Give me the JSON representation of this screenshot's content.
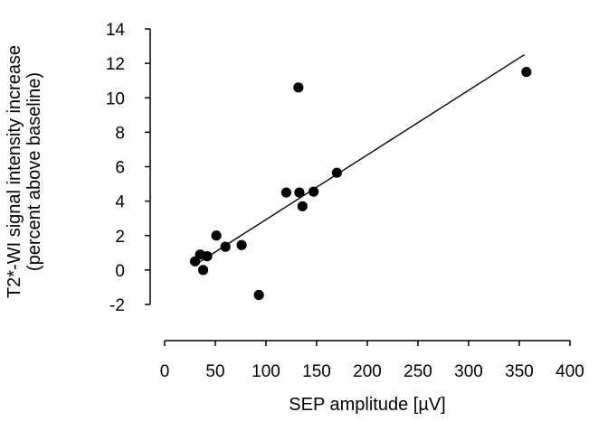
{
  "chart_data": {
    "type": "scatter",
    "title": "",
    "xlabel": "SEP amplitude [µV]",
    "ylabel_lines": [
      "T2*-WI signal intensity increase",
      "(percent above baseline)"
    ],
    "xlim": [
      0,
      400
    ],
    "ylim": [
      -2,
      14
    ],
    "x_ticks": [
      0,
      50,
      100,
      150,
      200,
      250,
      300,
      350,
      400
    ],
    "y_ticks": [
      -2,
      0,
      2,
      4,
      6,
      8,
      10,
      12,
      14
    ],
    "grid": false,
    "legend": "none",
    "marker_color": "#000000",
    "points": [
      {
        "x": 30,
        "y": 0.5
      },
      {
        "x": 35,
        "y": 0.9
      },
      {
        "x": 38,
        "y": 0.0
      },
      {
        "x": 42,
        "y": 0.8
      },
      {
        "x": 51,
        "y": 2.0
      },
      {
        "x": 60,
        "y": 1.35
      },
      {
        "x": 76,
        "y": 1.45
      },
      {
        "x": 93,
        "y": -1.45
      },
      {
        "x": 120,
        "y": 4.5
      },
      {
        "x": 132,
        "y": 10.6
      },
      {
        "x": 133,
        "y": 4.5
      },
      {
        "x": 136,
        "y": 3.7
      },
      {
        "x": 147,
        "y": 4.55
      },
      {
        "x": 170,
        "y": 5.65
      },
      {
        "x": 357,
        "y": 11.5
      }
    ],
    "regression_line": {
      "x": [
        30,
        355
      ],
      "y": [
        0.3,
        12.5
      ]
    }
  }
}
